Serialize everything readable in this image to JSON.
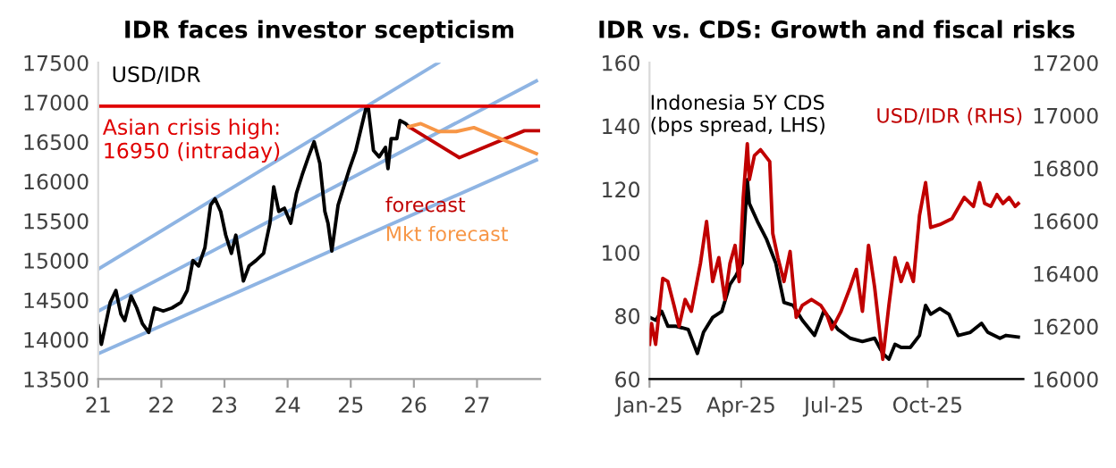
{
  "chart_data": [
    {
      "type": "line",
      "title": "IDR faces investor scepticism",
      "ylabel": "USD/IDR",
      "xlim": [
        21,
        28
      ],
      "xticks": [
        21,
        22,
        23,
        24,
        25,
        26,
        27
      ],
      "ylim": [
        13500,
        17500
      ],
      "yticks": [
        13500,
        14000,
        14500,
        15000,
        15500,
        16000,
        16500,
        17000,
        17500
      ],
      "grid": false,
      "legend": "right",
      "marker": "none",
      "line_style": "solid",
      "ref_lines": [
        {
          "axis": "y",
          "value": 16950,
          "label": "Asian crisis high:\n16950 (intraday)",
          "color": "#e00000"
        }
      ],
      "series": [
        {
          "color": "#8eb4e3",
          "x": [
            21,
            26.39
          ],
          "values": [
            14890,
            17500
          ]
        },
        {
          "color": "#8eb4e3",
          "x": [
            21,
            27.94
          ],
          "values": [
            14360,
            17270
          ]
        },
        {
          "color": "#8eb4e3",
          "x": [
            21,
            27.94
          ],
          "values": [
            13820,
            16270
          ]
        },
        {
          "color": "#000000",
          "x": [
            21.0,
            21.05,
            21.12,
            21.19,
            21.28,
            21.36,
            21.42,
            21.52,
            21.61,
            21.7,
            21.8,
            21.89,
            22.03,
            22.17,
            22.31,
            22.41,
            22.5,
            22.59,
            22.69,
            22.78,
            22.85,
            22.94,
            23.02,
            23.11,
            23.18,
            23.3,
            23.39,
            23.5,
            23.62,
            23.72,
            23.78,
            23.86,
            23.95,
            24.05,
            24.14,
            24.23,
            24.33,
            24.42,
            24.51,
            24.59,
            24.64,
            24.7,
            24.8,
            24.89,
            24.98,
            25.08,
            25.17,
            25.24,
            25.28,
            25.36,
            25.45,
            25.55,
            25.59,
            25.64,
            25.73,
            25.78,
            25.87,
            25.92
          ],
          "values": [
            14170,
            13940,
            14200,
            14470,
            14620,
            14320,
            14240,
            14550,
            14400,
            14200,
            14090,
            14400,
            14360,
            14400,
            14470,
            14620,
            15000,
            14930,
            15160,
            15700,
            15780,
            15620,
            15320,
            15090,
            15320,
            14740,
            14930,
            15000,
            15090,
            15470,
            15930,
            15620,
            15660,
            15470,
            15850,
            16080,
            16310,
            16500,
            16230,
            15620,
            15470,
            15120,
            15700,
            15930,
            16160,
            16390,
            16690,
            16920,
            16920,
            16390,
            16310,
            16430,
            16160,
            16540,
            16540,
            16770,
            16730,
            16690
          ]
        },
        {
          "name": "forecast",
          "color": "#c00000",
          "x": [
            25.92,
            26.72,
            27.75,
            28.0
          ],
          "values": [
            16690,
            16300,
            16640,
            16640
          ]
        },
        {
          "name": "Mkt forecast",
          "color": "#f79646",
          "x": [
            25.92,
            26.11,
            26.39,
            26.67,
            26.95,
            27.94
          ],
          "values": [
            16690,
            16730,
            16630,
            16630,
            16680,
            16350
          ]
        }
      ]
    },
    {
      "type": "line",
      "title": "IDR vs. CDS: Growth and fiscal risks",
      "xlim": [
        "2025-01-01",
        "2026-01-03"
      ],
      "xticks": [
        {
          "value": "2025-01-01",
          "label": "Jan-25"
        },
        {
          "value": "2025-04-01",
          "label": "Apr-25"
        },
        {
          "value": "2025-07-01",
          "label": "Jul-25"
        },
        {
          "value": "2025-10-01",
          "label": "Oct-25"
        }
      ],
      "ylim": [
        60,
        160
      ],
      "yticks": [
        60,
        80,
        100,
        120,
        140,
        160
      ],
      "y2lim": [
        16000,
        17200
      ],
      "y2ticks": [
        16000,
        16200,
        16400,
        16600,
        16800,
        17000,
        17200
      ],
      "grid": false,
      "legend": "top",
      "marker": "none",
      "line_style": "solid",
      "series": [
        {
          "name": "Indonesia 5Y CDS\n(bps spread, LHS)",
          "color": "#000000",
          "x": [
            "2025-01-01",
            "2025-01-07",
            "2025-01-13",
            "2025-01-19",
            "2025-01-27",
            "2025-02-08",
            "2025-02-17",
            "2025-02-23",
            "2025-03-04",
            "2025-03-13",
            "2025-03-21",
            "2025-03-27",
            "2025-04-02",
            "2025-04-07",
            "2025-04-09",
            "2025-04-17",
            "2025-04-26",
            "2025-05-05",
            "2025-05-13",
            "2025-05-22",
            "2025-05-31",
            "2025-06-12",
            "2025-06-21",
            "2025-06-26",
            "2025-07-05",
            "2025-07-17",
            "2025-07-29",
            "2025-08-10",
            "2025-08-18",
            "2025-08-24",
            "2025-08-30",
            "2025-09-05",
            "2025-09-14",
            "2025-09-23",
            "2025-09-29",
            "2025-10-04",
            "2025-10-13",
            "2025-10-22",
            "2025-10-31",
            "2025-11-12",
            "2025-11-23",
            "2025-11-29",
            "2025-12-11",
            "2025-12-17",
            "2025-12-29"
          ],
          "values": [
            79.5,
            78.6,
            81.4,
            76.7,
            76.7,
            75.7,
            68.1,
            74.8,
            79.5,
            81.4,
            89.9,
            92.8,
            96.6,
            123,
            115.5,
            109.8,
            104.1,
            96.6,
            84.2,
            83.3,
            78.6,
            73.8,
            81.4,
            79.5,
            75.7,
            72.9,
            71.9,
            72.9,
            68.1,
            66.3,
            71.0,
            70.0,
            70.0,
            73.8,
            83.3,
            80.5,
            82.3,
            80.5,
            73.8,
            74.8,
            77.6,
            74.8,
            72.9,
            73.8,
            73.3
          ]
        },
        {
          "name": "USD/IDR (RHS)",
          "color": "#c00000",
          "axis": "y2",
          "x": [
            "2025-01-01",
            "2025-01-03",
            "2025-01-07",
            "2025-01-14",
            "2025-01-19",
            "2025-01-25",
            "2025-01-30",
            "2025-02-05",
            "2025-02-11",
            "2025-02-20",
            "2025-02-26",
            "2025-03-04",
            "2025-03-10",
            "2025-03-16",
            "2025-03-21",
            "2025-03-26",
            "2025-03-30",
            "2025-04-03",
            "2025-04-07",
            "2025-04-09",
            "2025-04-14",
            "2025-04-20",
            "2025-04-29",
            "2025-05-02",
            "2025-05-07",
            "2025-05-13",
            "2025-05-19",
            "2025-05-25",
            "2025-05-31",
            "2025-06-09",
            "2025-06-18",
            "2025-06-24",
            "2025-06-29",
            "2025-07-08",
            "2025-07-17",
            "2025-07-23",
            "2025-07-29",
            "2025-08-04",
            "2025-08-10",
            "2025-08-18",
            "2025-08-24",
            "2025-08-30",
            "2025-09-05",
            "2025-09-11",
            "2025-09-17",
            "2025-09-23",
            "2025-09-29",
            "2025-10-04",
            "2025-10-13",
            "2025-10-25",
            "2025-11-06",
            "2025-11-15",
            "2025-11-21",
            "2025-11-26",
            "2025-12-02",
            "2025-12-08",
            "2025-12-14",
            "2025-12-20",
            "2025-12-26",
            "2025-12-29"
          ],
          "values": [
            16132,
            16211,
            16132,
            16382,
            16370,
            16280,
            16200,
            16302,
            16257,
            16439,
            16598,
            16370,
            16461,
            16302,
            16439,
            16507,
            16370,
            16689,
            16893,
            16757,
            16848,
            16870,
            16825,
            16552,
            16461,
            16370,
            16484,
            16234,
            16280,
            16302,
            16280,
            16245,
            16189,
            16257,
            16348,
            16416,
            16257,
            16507,
            16348,
            16075,
            16280,
            16461,
            16370,
            16439,
            16370,
            16620,
            16745,
            16575,
            16586,
            16609,
            16689,
            16655,
            16745,
            16666,
            16655,
            16700,
            16666,
            16689,
            16655,
            16666
          ]
        }
      ]
    }
  ]
}
